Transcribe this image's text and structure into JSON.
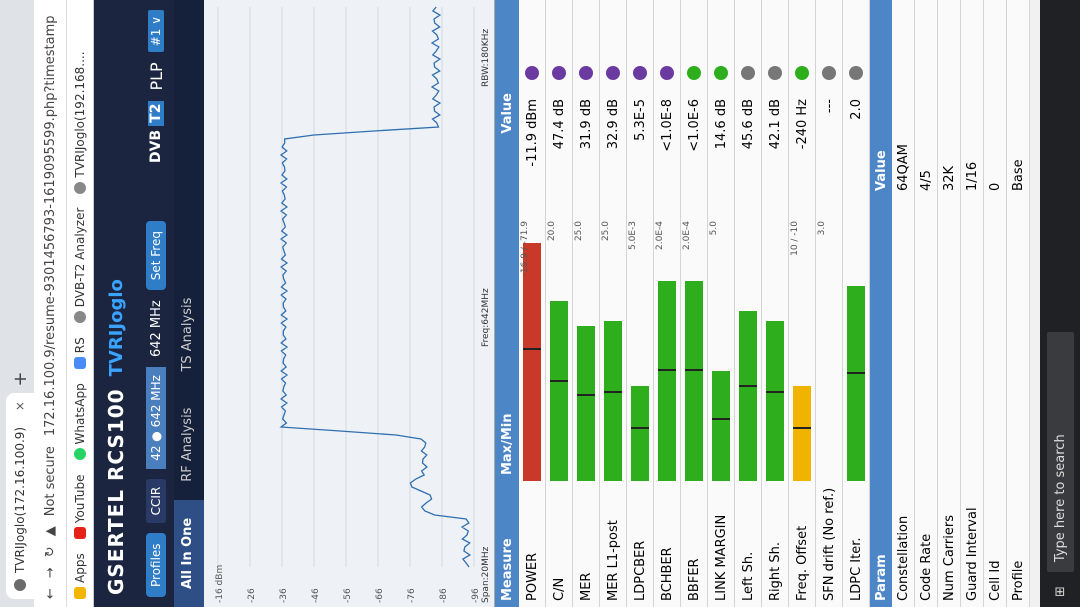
{
  "browser": {
    "tab_title": "TVRIJoglo(172.16.100.9)",
    "tab_close": "×",
    "new_tab": "+",
    "security": "Not secure",
    "url": "172.16.100.9/resume-9301456793-1619095599.php?timestamp",
    "bookmarks": [
      "Apps",
      "YouTube",
      "WhatsApp",
      "RS",
      "DVB-T2 Analyzer",
      "TVRIJoglo(192.168...."
    ]
  },
  "app": {
    "brand": "GSERTEL RCS100",
    "station": "TVRIJoglo",
    "profiles_button": "Profiles",
    "standard": "CCIR",
    "channel": "42 ● 642 MHz",
    "frequency": "642 MHz",
    "set_freq_button": "Set Freq",
    "dvb_logo": "DVB",
    "dvb_t2": "T2",
    "plp_label": "PLP",
    "plp_value": "#1 ∨",
    "tabs": [
      "All In One",
      "RF Analysis",
      "TS Analysis"
    ],
    "active_tab": "All In One"
  },
  "spectrum": {
    "y_ticks": [
      "-16 dBm",
      "-26",
      "-36",
      "-46",
      "-56",
      "-66",
      "-76",
      "-86",
      "-96"
    ],
    "span": "Span:20MHz",
    "freq": "Freq:642MHz",
    "rbw": "RBW:180KHz"
  },
  "measures": {
    "headers": [
      "Measure",
      "Max/Min",
      "Value"
    ],
    "rows": [
      {
        "name": "POWER",
        "fill": 0.95,
        "color": "#c9392a",
        "lim": "-16.9 / -71.9",
        "value": "-11.9 dBm",
        "led": "#6a3aa0"
      },
      {
        "name": "C/N",
        "fill": 0.72,
        "color": "#2fae1d",
        "lim": "20.0",
        "value": "47.4 dB",
        "led": "#6a3aa0"
      },
      {
        "name": "MER",
        "fill": 0.62,
        "color": "#2fae1d",
        "lim": "25.0",
        "value": "31.9 dB",
        "led": "#6a3aa0"
      },
      {
        "name": "MER L1-post",
        "fill": 0.64,
        "color": "#2fae1d",
        "lim": "25.0",
        "value": "32.9 dB",
        "led": "#6a3aa0"
      },
      {
        "name": "LDPCBER",
        "fill": 0.38,
        "color": "#2fae1d",
        "lim": "5.0E-3",
        "value": "5.3E-5",
        "led": "#6a3aa0"
      },
      {
        "name": "BCHBER",
        "fill": 0.8,
        "color": "#2fae1d",
        "lim": "2.0E-4",
        "value": "<1.0E-8",
        "led": "#6a3aa0"
      },
      {
        "name": "BBFER",
        "fill": 0.8,
        "color": "#2fae1d",
        "lim": "2.0E-4",
        "value": "<1.0E-6",
        "led": "#2fae1d"
      },
      {
        "name": "LINK MARGIN",
        "fill": 0.44,
        "color": "#2fae1d",
        "lim": "5.0",
        "value": "14.6 dB",
        "led": "#2fae1d"
      },
      {
        "name": "Left Sh.",
        "fill": 0.68,
        "color": "#2fae1d",
        "lim": "",
        "value": "45.6 dB",
        "led": "#777777"
      },
      {
        "name": "Right Sh.",
        "fill": 0.64,
        "color": "#2fae1d",
        "lim": "",
        "value": "42.1 dB",
        "led": "#777777"
      },
      {
        "name": "Freq. Offset",
        "fill": 0.38,
        "color": "#f0b400",
        "lim": "10 / -10",
        "value": "-240 Hz",
        "led": "#2fae1d"
      },
      {
        "name": "SFN drift (No ref.)",
        "fill": 0.0,
        "color": "#2fae1d",
        "lim": "3.0",
        "value": "---",
        "led": "#777777"
      },
      {
        "name": "LDPC Iter.",
        "fill": 0.78,
        "color": "#2fae1d",
        "lim": "",
        "value": "2.0",
        "led": "#777777"
      }
    ]
  },
  "params": {
    "headers": [
      "Param",
      "Value"
    ],
    "rows": [
      {
        "k": "Constellation",
        "v": "64QAM"
      },
      {
        "k": "Code Rate",
        "v": "4/5"
      },
      {
        "k": "Num Carriers",
        "v": "32K"
      },
      {
        "k": "Guard Interval",
        "v": "1/16"
      },
      {
        "k": "Cell Id",
        "v": "0"
      },
      {
        "k": "Profile",
        "v": "Base"
      }
    ]
  },
  "taskbar": {
    "search_placeholder": "Type here to search"
  }
}
